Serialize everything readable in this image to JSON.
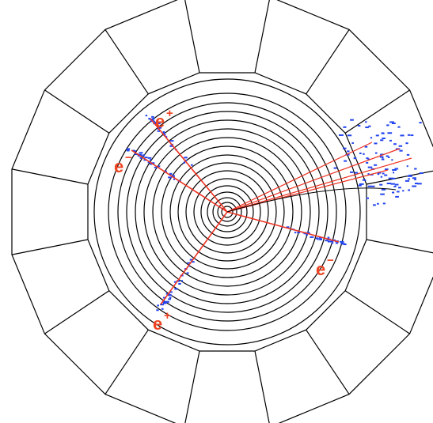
{
  "labels": [
    {
      "particle": "e",
      "charge": "+"
    },
    {
      "particle": "e",
      "charge": "−"
    },
    {
      "particle": "e",
      "charge": "−"
    },
    {
      "particle": "e",
      "charge": "+"
    }
  ]
}
